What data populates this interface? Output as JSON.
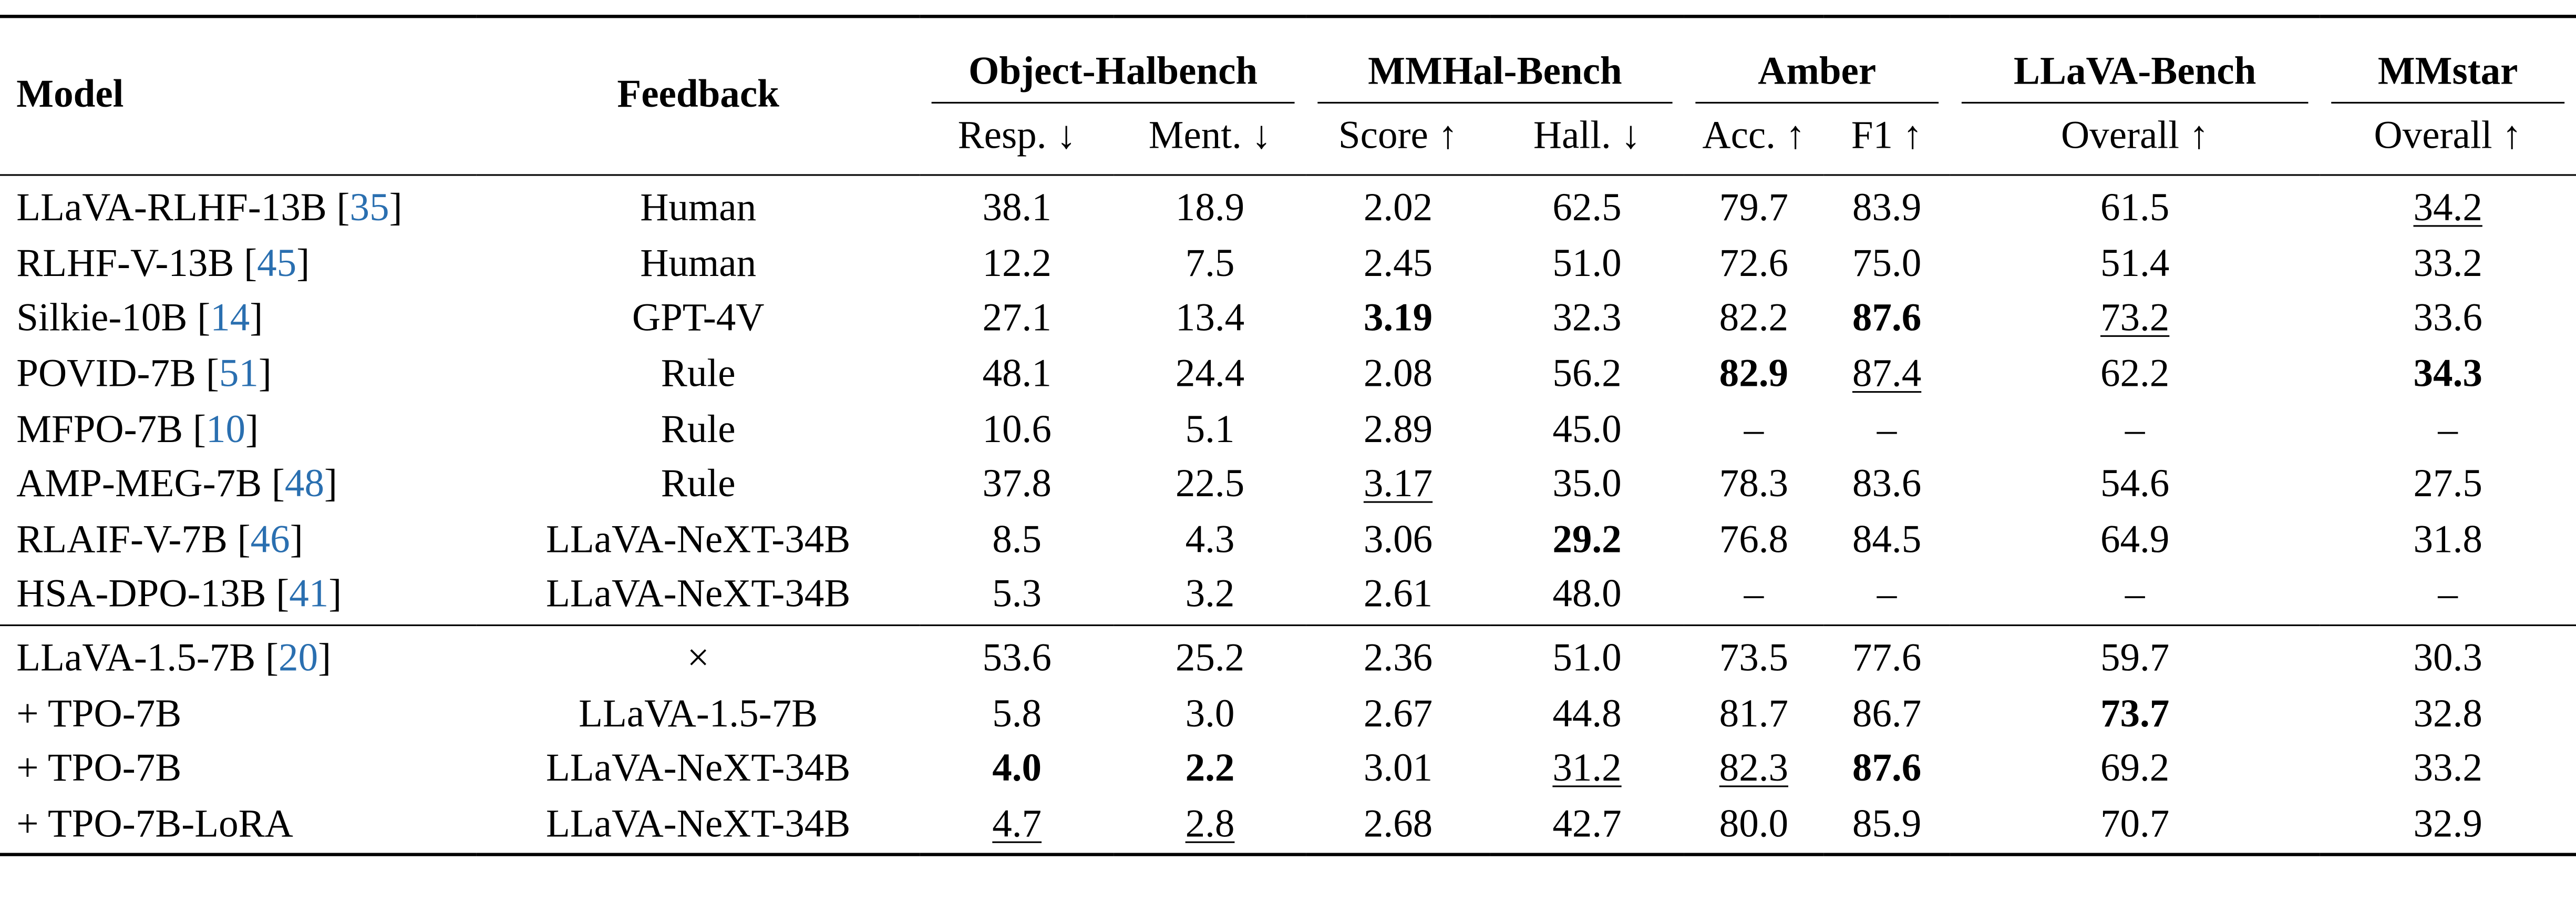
{
  "table": {
    "header": {
      "model": "Model",
      "feedback": "Feedback",
      "groups": [
        {
          "name": "Object-Halbench",
          "cols": [
            "Resp. ↓",
            "Ment. ↓"
          ]
        },
        {
          "name": "MMHal-Bench",
          "cols": [
            "Score ↑",
            "Hall. ↓"
          ]
        },
        {
          "name": "Amber",
          "cols": [
            "Acc. ↑",
            "F1 ↑"
          ]
        },
        {
          "name": "LLaVA-Bench",
          "cols": [
            "Overall ↑"
          ]
        },
        {
          "name": "MMstar",
          "cols": [
            "Overall ↑"
          ]
        }
      ]
    },
    "sections": [
      [
        {
          "model": "LLaVA-RLHF-13B",
          "cite": "35",
          "feedback": "Human",
          "values": [
            "38.1",
            "18.9",
            "2.02",
            "62.5",
            "79.7",
            "83.9",
            "61.5",
            "34.2"
          ],
          "styles": [
            "",
            "",
            "",
            "",
            "",
            "",
            "",
            "u"
          ]
        },
        {
          "model": "RLHF-V-13B",
          "cite": "45",
          "feedback": "Human",
          "values": [
            "12.2",
            "7.5",
            "2.45",
            "51.0",
            "72.6",
            "75.0",
            "51.4",
            "33.2"
          ],
          "styles": [
            "",
            "",
            "",
            "",
            "",
            "",
            "",
            ""
          ]
        },
        {
          "model": "Silkie-10B",
          "cite": "14",
          "feedback": "GPT-4V",
          "values": [
            "27.1",
            "13.4",
            "3.19",
            "32.3",
            "82.2",
            "87.6",
            "73.2",
            "33.6"
          ],
          "styles": [
            "",
            "",
            "b",
            "",
            "",
            "b",
            "u",
            ""
          ]
        },
        {
          "model": "POVID-7B",
          "cite": "51",
          "feedback": "Rule",
          "values": [
            "48.1",
            "24.4",
            "2.08",
            "56.2",
            "82.9",
            "87.4",
            "62.2",
            "34.3"
          ],
          "styles": [
            "",
            "",
            "",
            "",
            "b",
            "u",
            "",
            "b"
          ]
        },
        {
          "model": "MFPO-7B",
          "cite": "10",
          "feedback": "Rule",
          "values": [
            "10.6",
            "5.1",
            "2.89",
            "45.0",
            "–",
            "–",
            "–",
            "–"
          ],
          "styles": [
            "",
            "",
            "",
            "",
            "",
            "",
            "",
            ""
          ]
        },
        {
          "model": "AMP-MEG-7B",
          "cite": "48",
          "feedback": "Rule",
          "values": [
            "37.8",
            "22.5",
            "3.17",
            "35.0",
            "78.3",
            "83.6",
            "54.6",
            "27.5"
          ],
          "styles": [
            "",
            "",
            "u",
            "",
            "",
            "",
            "",
            ""
          ]
        },
        {
          "model": "RLAIF-V-7B",
          "cite": "46",
          "feedback": "LLaVA-NeXT-34B",
          "values": [
            "8.5",
            "4.3",
            "3.06",
            "29.2",
            "76.8",
            "84.5",
            "64.9",
            "31.8"
          ],
          "styles": [
            "",
            "",
            "",
            "b",
            "",
            "",
            "",
            ""
          ]
        },
        {
          "model": "HSA-DPO-13B",
          "cite": "41",
          "feedback": "LLaVA-NeXT-34B",
          "values": [
            "5.3",
            "3.2",
            "2.61",
            "48.0",
            "–",
            "–",
            "–",
            "–"
          ],
          "styles": [
            "",
            "",
            "",
            "",
            "",
            "",
            "",
            ""
          ]
        }
      ],
      [
        {
          "model": "LLaVA-1.5-7B",
          "cite": "20",
          "feedback": "×",
          "values": [
            "53.6",
            "25.2",
            "2.36",
            "51.0",
            "73.5",
            "77.6",
            "59.7",
            "30.3"
          ],
          "styles": [
            "",
            "",
            "",
            "",
            "",
            "",
            "",
            ""
          ]
        },
        {
          "model": "+ TPO-7B",
          "cite": "",
          "feedback": "LLaVA-1.5-7B",
          "values": [
            "5.8",
            "3.0",
            "2.67",
            "44.8",
            "81.7",
            "86.7",
            "73.7",
            "32.8"
          ],
          "styles": [
            "",
            "",
            "",
            "",
            "",
            "",
            "b",
            ""
          ]
        },
        {
          "model": "+ TPO-7B",
          "cite": "",
          "feedback": "LLaVA-NeXT-34B",
          "values": [
            "4.0",
            "2.2",
            "3.01",
            "31.2",
            "82.3",
            "87.6",
            "69.2",
            "33.2"
          ],
          "styles": [
            "b",
            "b",
            "",
            "u",
            "u",
            "b",
            "",
            ""
          ]
        },
        {
          "model": "+ TPO-7B-LoRA",
          "cite": "",
          "feedback": "LLaVA-NeXT-34B",
          "values": [
            "4.7",
            "2.8",
            "2.68",
            "42.7",
            "80.0",
            "85.9",
            "70.7",
            "32.9"
          ],
          "styles": [
            "u",
            "u",
            "",
            "",
            "",
            "",
            "",
            ""
          ]
        }
      ]
    ]
  }
}
